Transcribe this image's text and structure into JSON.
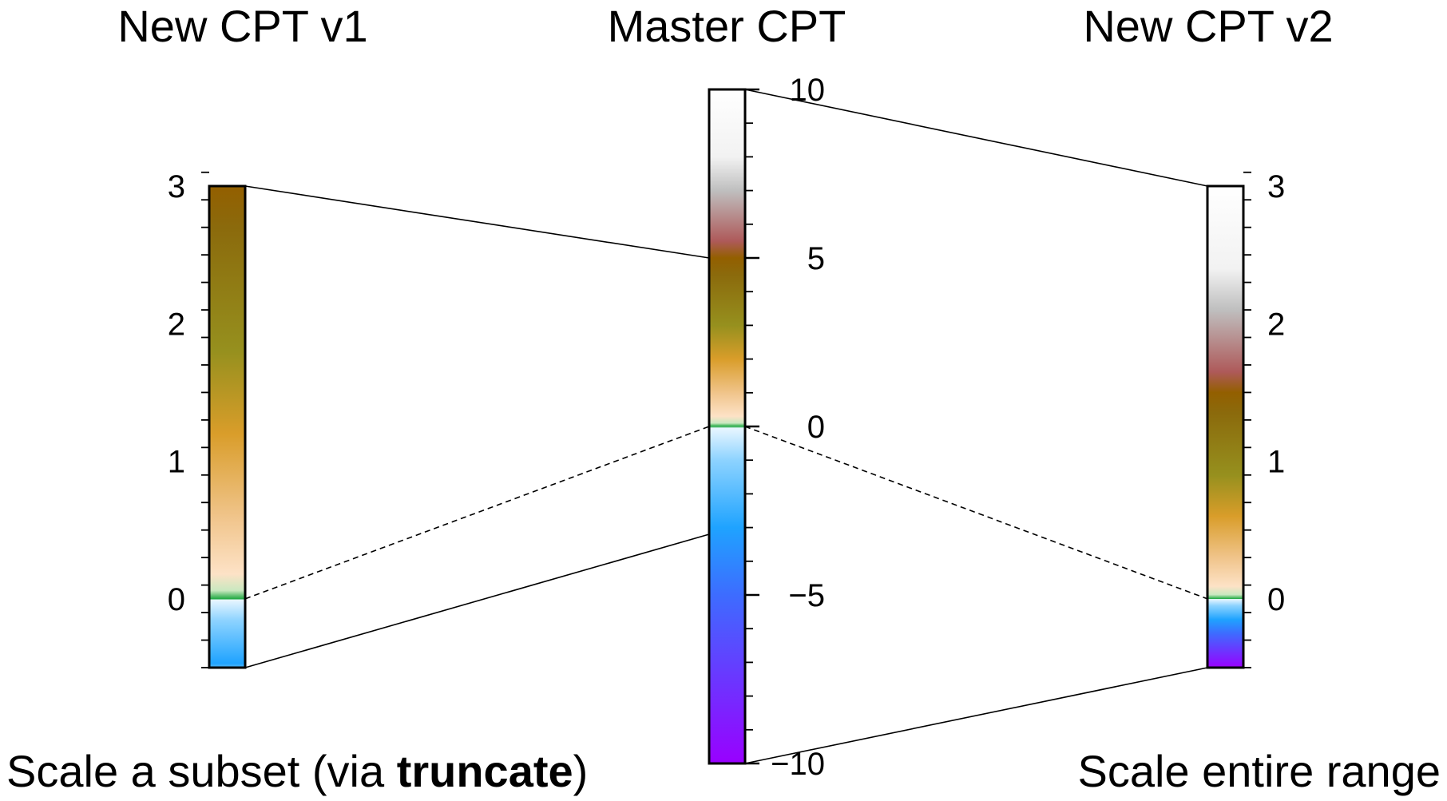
{
  "titles": {
    "left": "New CPT v1",
    "center": "Master CPT",
    "right": "New CPT v2"
  },
  "captions": {
    "left_prefix": "Scale a subset (via ",
    "left_bold": "truncate",
    "left_suffix": ")",
    "right": "Scale entire range"
  },
  "master_cpt": {
    "range": [
      -10,
      10
    ],
    "tick_labels": [
      "10",
      "5",
      "0",
      "−5",
      "−10"
    ],
    "tick_values": [
      10,
      5,
      0,
      -5,
      -10
    ],
    "minor_step": 1,
    "truncate_range": [
      -3.2,
      5
    ]
  },
  "cpt_v1": {
    "range": [
      -0.5,
      3
    ],
    "tick_labels": [
      "3",
      "2",
      "1",
      "0"
    ],
    "tick_values": [
      3,
      2,
      1,
      0
    ],
    "minor_step": 0.2
  },
  "cpt_v2": {
    "range": [
      -0.5,
      3
    ],
    "tick_labels": [
      "3",
      "2",
      "1",
      "0"
    ],
    "tick_values": [
      3,
      2,
      1,
      0
    ],
    "minor_step": 0.2
  },
  "colors": {
    "ocean_low": "#9900ff",
    "ocean_mid": "#1fa3ff",
    "ocean_high": "#e8f6ff",
    "coast": "#22aa44",
    "land_sand": "#fde2c6",
    "land_gold": "#d99d2a",
    "land_olive": "#96901e",
    "land_brown": "#935f00",
    "land_rose": "#ae5a5a",
    "land_grey": "#bfbfbf",
    "land_white": "#ffffff"
  }
}
